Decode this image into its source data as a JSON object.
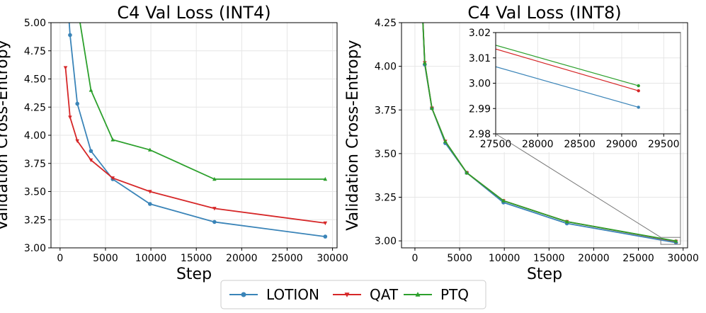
{
  "colors": {
    "LOTION": "#3a84b8",
    "QAT": "#d62728",
    "PTQ": "#2ca02c"
  },
  "legend": {
    "placement": "bottom-center",
    "entries": [
      "LOTION",
      "QAT",
      "PTQ"
    ]
  },
  "chart_data": [
    {
      "type": "line",
      "title": "C4 Val Loss (INT4)",
      "xlabel": "Step",
      "ylabel": "Validation Cross-Entropy",
      "xlim": [
        -1000,
        30500
      ],
      "ylim": [
        3.0,
        5.0
      ],
      "xticks": [
        0,
        5000,
        10000,
        15000,
        20000,
        25000,
        30000
      ],
      "yticks": [
        3.0,
        3.25,
        3.5,
        3.75,
        4.0,
        4.25,
        4.5,
        4.75,
        5.0
      ],
      "grid": true,
      "series": [
        {
          "name": "LOTION",
          "marker": "circle",
          "x": [
            500,
            1100,
            1900,
            3400,
            5800,
            9900,
            17000,
            29200
          ],
          "y": [
            5.6,
            4.89,
            4.28,
            3.86,
            3.61,
            3.39,
            3.23,
            3.1
          ]
        },
        {
          "name": "QAT",
          "marker": "triangle-down",
          "x": [
            600,
            1100,
            1900,
            3400,
            5800,
            9900,
            17000,
            29200
          ],
          "y": [
            4.6,
            4.16,
            3.95,
            3.78,
            3.62,
            3.5,
            3.35,
            3.22
          ]
        },
        {
          "name": "PTQ",
          "marker": "triangle-up",
          "x": [
            1400,
            3400,
            5800,
            9900,
            17000,
            29200
          ],
          "y": [
            5.4,
            4.4,
            3.96,
            3.87,
            3.61,
            3.61
          ]
        }
      ]
    },
    {
      "type": "line",
      "title": "C4 Val Loss (INT8)",
      "xlabel": "Step",
      "ylabel": "Validation Cross-Entropy",
      "xlim": [
        -1500,
        30500
      ],
      "ylim": [
        2.96,
        4.25
      ],
      "xticks": [
        0,
        5000,
        10000,
        15000,
        20000,
        25000,
        30000
      ],
      "yticks": [
        3.0,
        3.25,
        3.5,
        3.75,
        4.0,
        4.25
      ],
      "grid": true,
      "series": [
        {
          "name": "LOTION",
          "marker": "circle",
          "x": [
            500,
            1100,
            1900,
            3400,
            5800,
            9900,
            17000,
            29200
          ],
          "y": [
            4.7,
            4.01,
            3.76,
            3.56,
            3.39,
            3.22,
            3.1,
            2.99
          ]
        },
        {
          "name": "QAT",
          "marker": "triangle-down",
          "x": [
            500,
            1100,
            1900,
            3400,
            5800,
            9900,
            17000,
            29200
          ],
          "y": [
            4.7,
            4.02,
            3.76,
            3.57,
            3.39,
            3.23,
            3.11,
            2.997
          ]
        },
        {
          "name": "PTQ",
          "marker": "triangle-up",
          "x": [
            500,
            1100,
            1900,
            3400,
            5800,
            9900,
            17000,
            29200
          ],
          "y": [
            4.7,
            4.02,
            3.76,
            3.57,
            3.39,
            3.23,
            3.11,
            2.999
          ]
        }
      ],
      "inset": {
        "xlim": [
          27500,
          29700
        ],
        "ylim": [
          2.98,
          3.02
        ],
        "xticks": [
          27500,
          28000,
          28500,
          29000,
          29500
        ],
        "yticks": [
          2.98,
          2.99,
          3.0,
          3.01,
          3.02
        ],
        "series": [
          {
            "name": "LOTION",
            "x": [
              27500,
              29200
            ],
            "y": [
              3.0065,
              2.9905
            ]
          },
          {
            "name": "QAT",
            "x": [
              27500,
              29200
            ],
            "y": [
              3.0135,
              2.997
            ]
          },
          {
            "name": "PTQ",
            "x": [
              27500,
              29200
            ],
            "y": [
              3.015,
              2.999
            ]
          }
        ]
      }
    }
  ]
}
